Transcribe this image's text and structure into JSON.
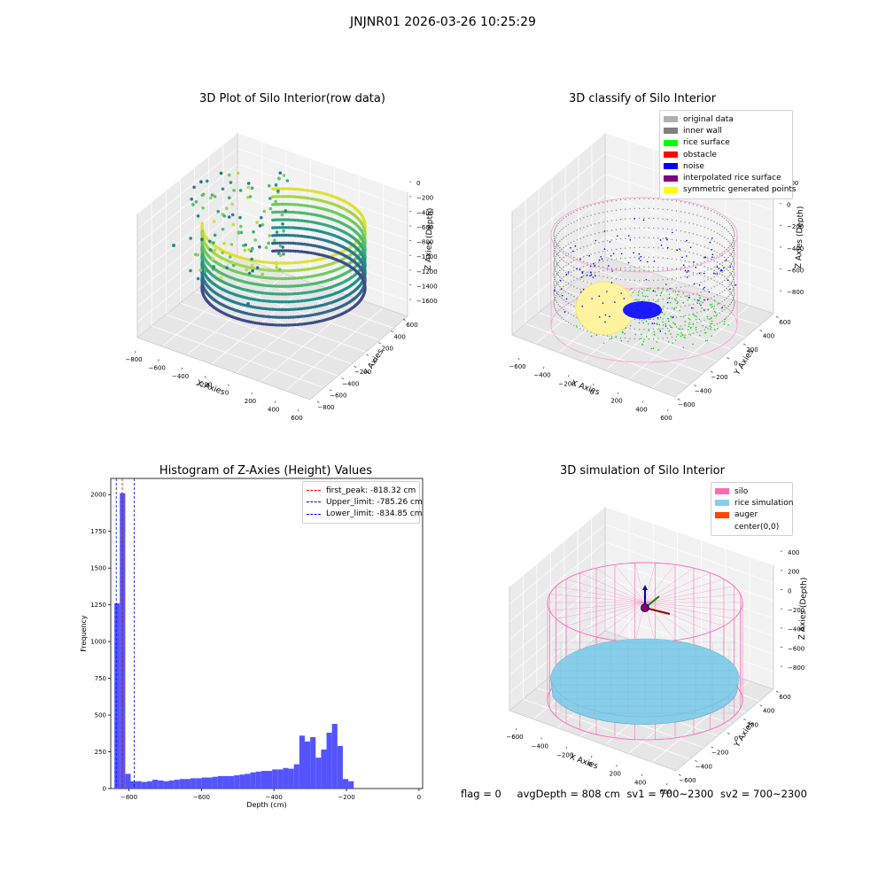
{
  "suptitle": "JNJNR01 2026-03-26 10:25:29",
  "colors": {
    "hist_bar": "#4b4bff",
    "silo": "#ff69b4",
    "rice": "#87ceeb",
    "auger": "#ff4500",
    "grid_pane": "#f2f2f2"
  },
  "chart_data": [
    {
      "type": "scatter3d",
      "title": "3D Plot of Silo Interior(row data)",
      "xlabel": "X Axies",
      "ylabel": "Y Axies",
      "zlabel": "Z Axies (Depth)",
      "x_ticks": [
        "−800",
        "−600",
        "−400",
        "−200",
        "0",
        "200",
        "400",
        "600"
      ],
      "y_ticks": [
        "−800",
        "−600",
        "−400",
        "−200",
        "0",
        "200",
        "400",
        "600"
      ],
      "z_ticks": [
        "0",
        "−200",
        "−400",
        "−600",
        "−800",
        "−1000",
        "−1200",
        "−1400",
        "−1600"
      ],
      "colormap": "viridis"
    },
    {
      "type": "scatter3d",
      "title": "3D classify of Silo Interior",
      "xlabel": "X Axies",
      "ylabel": "Y Axies",
      "zlabel": "Z Axies (Depth)",
      "x_ticks": [
        "−600",
        "−400",
        "−200",
        "0",
        "200",
        "400",
        "600"
      ],
      "y_ticks": [
        "−600",
        "−400",
        "−200",
        "0",
        "200",
        "400",
        "600"
      ],
      "z_ticks": [
        "200",
        "0",
        "−200",
        "−400",
        "−600",
        "−800"
      ],
      "legend": [
        {
          "label": "original data",
          "color": "#b0b0b0"
        },
        {
          "label": "inner wall",
          "color": "#808080"
        },
        {
          "label": "rice surface",
          "color": "#00ff00"
        },
        {
          "label": "obstacle",
          "color": "#ff0000"
        },
        {
          "label": "noise",
          "color": "#0000ff"
        },
        {
          "label": "interpolated rice surface",
          "color": "#800080"
        },
        {
          "label": "symmetric generated points",
          "color": "#ffff00"
        }
      ]
    },
    {
      "type": "bar",
      "title": "Histogram of Z-Axies (Height) Values",
      "xlabel": "Depth (cm)",
      "ylabel": "Frequency",
      "xlim": [
        -850,
        10
      ],
      "ylim": [
        0,
        2110
      ],
      "x_ticks": [
        -800,
        -600,
        -400,
        -200,
        0
      ],
      "x_tick_labels": [
        "−800",
        "−600",
        "−400",
        "−200",
        "0"
      ],
      "y_ticks": [
        0,
        250,
        500,
        750,
        1000,
        1250,
        1500,
        1750,
        2000
      ],
      "bin_start": -840,
      "bin_width": 15,
      "values": [
        1260,
        2010,
        100,
        50,
        50,
        45,
        50,
        60,
        55,
        50,
        55,
        60,
        65,
        65,
        70,
        70,
        75,
        75,
        80,
        85,
        85,
        85,
        90,
        95,
        100,
        110,
        115,
        120,
        120,
        130,
        130,
        140,
        135,
        165,
        360,
        320,
        350,
        210,
        265,
        380,
        440,
        290,
        65,
        50
      ],
      "lines": [
        {
          "label": "first_peak: -818.32 cm",
          "x": -818.32,
          "color": "#ff0000"
        },
        {
          "label": "Upper_limit: -785.26 cm",
          "x": -785.26,
          "color": "#0000ff"
        },
        {
          "label": "Lower_limit: -834.85 cm",
          "x": -834.85,
          "color": "#0000ff"
        }
      ]
    },
    {
      "type": "surface3d",
      "title": "3D simulation of Silo Interior",
      "xlabel": "X Axies",
      "ylabel": "Y Axies",
      "zlabel": "Z Axies (Depth)",
      "x_ticks": [
        "−600",
        "−400",
        "−200",
        "0",
        "200",
        "400",
        "600"
      ],
      "y_ticks": [
        "−600",
        "−400",
        "−200",
        "0",
        "200",
        "400",
        "600"
      ],
      "z_ticks": [
        "400",
        "200",
        "0",
        "−200",
        "−400",
        "−600",
        "−800"
      ],
      "legend": [
        {
          "label": "silo",
          "color": "#ff69b4"
        },
        {
          "label": "rice simulation",
          "color": "#87ceeb"
        },
        {
          "label": "auger",
          "color": "#ff4500"
        },
        {
          "label": "center(0,0)",
          "color": ""
        }
      ]
    }
  ],
  "status": {
    "flag": "flag = 0",
    "avg_depth": "avgDepth = 808 cm",
    "sv1": "sv1 = 700~2300",
    "sv2": "sv2 = 700~2300"
  }
}
